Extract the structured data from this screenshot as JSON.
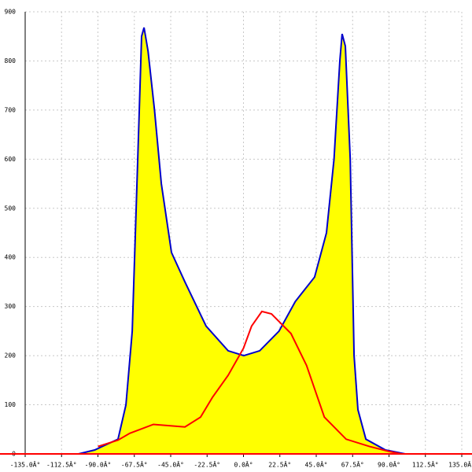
{
  "chart_data": {
    "type": "area-line",
    "xlim": [
      -135,
      135
    ],
    "ylim": [
      0,
      900
    ],
    "xticks": [
      {
        "value": -135,
        "label": "-135.0Â°"
      },
      {
        "value": -112.5,
        "label": "-112.5Â°"
      },
      {
        "value": -90,
        "label": "-90.0Â°"
      },
      {
        "value": -67.5,
        "label": "-67.5Â°"
      },
      {
        "value": -45,
        "label": "-45.0Â°"
      },
      {
        "value": -22.5,
        "label": "-22.5Â°"
      },
      {
        "value": 0,
        "label": "0.0Â°"
      },
      {
        "value": 22.5,
        "label": "22.5Â°"
      },
      {
        "value": 45,
        "label": "45.0Â°"
      },
      {
        "value": 67.5,
        "label": "67.5Â°"
      },
      {
        "value": 90,
        "label": "90.0Â°"
      },
      {
        "value": 112.5,
        "label": "112.5Â°"
      },
      {
        "value": 135,
        "label": "135.0Â°"
      }
    ],
    "yticks": [
      0,
      100,
      200,
      300,
      400,
      500,
      600,
      700,
      800,
      900
    ],
    "grid": true,
    "axis_color": "#ff0000",
    "series": [
      {
        "color": "#0000cc",
        "fill": "#ffff00",
        "x": [
          -102,
          -92,
          -77.6,
          -72.7,
          -68.8,
          -65.4,
          -63,
          -61.5,
          -59,
          -55,
          -50.8,
          -44.5,
          -36.2,
          -23.1,
          -9.5,
          0.2,
          10,
          22,
          32,
          44,
          51.3,
          56,
          59.6,
          61,
          63,
          66,
          68.4,
          70.8,
          75.7,
          87.8,
          100
        ],
        "values": [
          0,
          8,
          30,
          100,
          250,
          600,
          850,
          868,
          820,
          700,
          550,
          410,
          350,
          260,
          210,
          200,
          210,
          250,
          310,
          360,
          450,
          600,
          800,
          855,
          830,
          600,
          200,
          90,
          30,
          8,
          0
        ]
      },
      {
        "color": "#ff0000",
        "x": [
          -90,
          -77.6,
          -70.3,
          -55.7,
          -36.2,
          -26.5,
          -19.2,
          -9.5,
          0,
          5,
          11.4,
          17.3,
          29.4,
          39,
          50,
          63.5,
          78,
          90,
          97.6
        ],
        "values": [
          15,
          28,
          42,
          60,
          55,
          75,
          115,
          160,
          215,
          260,
          290,
          285,
          245,
          180,
          75,
          30,
          15,
          5,
          0
        ]
      }
    ]
  }
}
